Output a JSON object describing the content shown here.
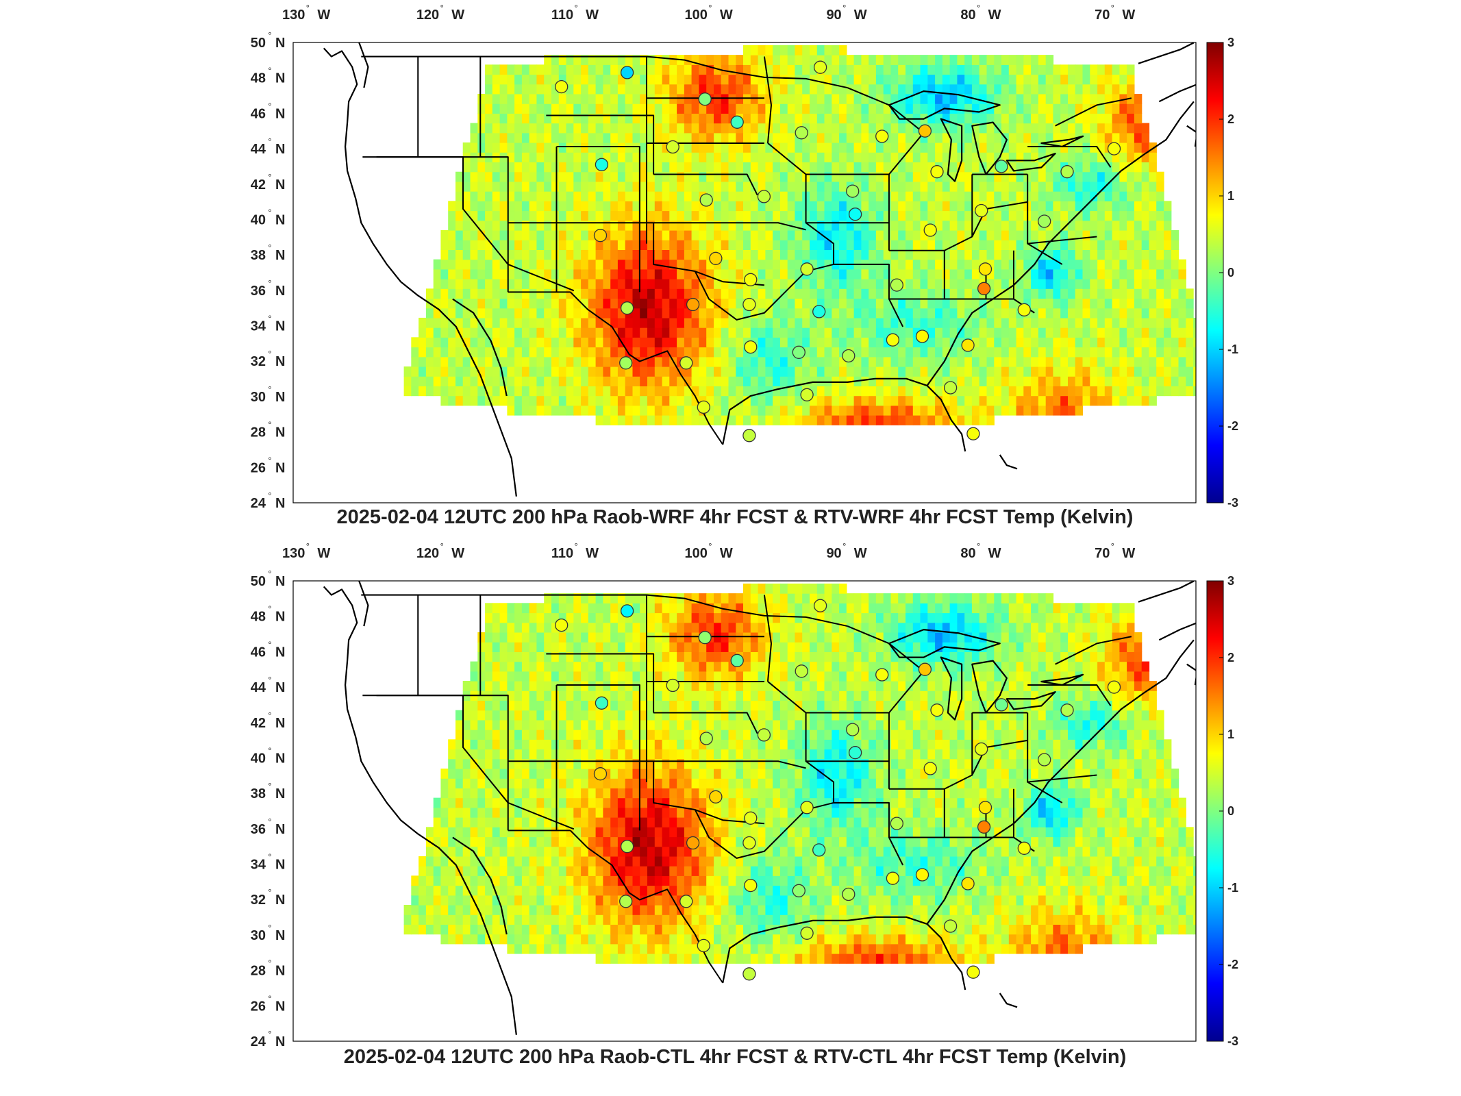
{
  "figure": {
    "colormap": "jet",
    "colors": {
      "jet": [
        "#00008f",
        "#0000ff",
        "#0080ff",
        "#00ffff",
        "#80ff80",
        "#ffff00",
        "#ff8000",
        "#ff0000",
        "#800000"
      ],
      "background": "#ffffff",
      "border": "#000000",
      "station_outline": "#333333"
    },
    "value_range": [
      -3,
      3
    ],
    "longitude_ticks": [
      {
        "value": -130,
        "label": "130",
        "hemi": "W"
      },
      {
        "value": -120,
        "label": "120",
        "hemi": "W"
      },
      {
        "value": -110,
        "label": "110",
        "hemi": "W"
      },
      {
        "value": -100,
        "label": "100",
        "hemi": "W"
      },
      {
        "value": -90,
        "label": "90",
        "hemi": "W"
      },
      {
        "value": -80,
        "label": "80",
        "hemi": "W"
      },
      {
        "value": -70,
        "label": "70",
        "hemi": "W"
      }
    ],
    "latitude_ticks": [
      {
        "value": 50,
        "label": "50",
        "hemi": "N"
      },
      {
        "value": 48,
        "label": "48",
        "hemi": "N"
      },
      {
        "value": 46,
        "label": "46",
        "hemi": "N"
      },
      {
        "value": 44,
        "label": "44",
        "hemi": "N"
      },
      {
        "value": 42,
        "label": "42",
        "hemi": "N"
      },
      {
        "value": 40,
        "label": "40",
        "hemi": "N"
      },
      {
        "value": 38,
        "label": "38",
        "hemi": "N"
      },
      {
        "value": 36,
        "label": "36",
        "hemi": "N"
      },
      {
        "value": 34,
        "label": "34",
        "hemi": "N"
      },
      {
        "value": 32,
        "label": "32",
        "hemi": "N"
      },
      {
        "value": 30,
        "label": "30",
        "hemi": "N"
      },
      {
        "value": 28,
        "label": "28",
        "hemi": "N"
      },
      {
        "value": 26,
        "label": "26",
        "hemi": "N"
      },
      {
        "value": 24,
        "label": "24",
        "hemi": "N"
      }
    ],
    "colorbar_ticks": [
      "3",
      "2",
      "1",
      "0",
      "-1",
      "-2",
      "-3"
    ]
  },
  "panels": [
    {
      "title": "2025-02-04 12UTC 200 hPa Raob-WRF 4hr FCST & RTV-WRF 4hr FCST Temp (Kelvin)",
      "stations": [
        {
          "lon": -106.6,
          "lat": 48.3,
          "v": -1.0
        },
        {
          "lon": -111.5,
          "lat": 47.5,
          "v": 0.7
        },
        {
          "lon": -100.8,
          "lat": 46.8,
          "v": 0.0
        },
        {
          "lon": -98.4,
          "lat": 45.5,
          "v": -0.4
        },
        {
          "lon": -103.2,
          "lat": 44.1,
          "v": 0.5
        },
        {
          "lon": -108.5,
          "lat": 43.1,
          "v": -0.6
        },
        {
          "lon": -93.6,
          "lat": 44.9,
          "v": 0.3
        },
        {
          "lon": -92.2,
          "lat": 48.6,
          "v": 0.6
        },
        {
          "lon": -100.7,
          "lat": 41.1,
          "v": 0.3
        },
        {
          "lon": -96.4,
          "lat": 41.3,
          "v": 0.4
        },
        {
          "lon": -108.6,
          "lat": 39.1,
          "v": 1.0
        },
        {
          "lon": -100.0,
          "lat": 37.8,
          "v": 1.0
        },
        {
          "lon": -97.4,
          "lat": 36.6,
          "v": 0.7
        },
        {
          "lon": -97.5,
          "lat": 35.2,
          "v": 0.6
        },
        {
          "lon": -101.7,
          "lat": 35.2,
          "v": 1.3
        },
        {
          "lon": -106.6,
          "lat": 35.0,
          "v": 0.3
        },
        {
          "lon": -106.7,
          "lat": 31.9,
          "v": 0.2
        },
        {
          "lon": -102.2,
          "lat": 31.9,
          "v": 0.5
        },
        {
          "lon": -97.4,
          "lat": 32.8,
          "v": 0.7
        },
        {
          "lon": -100.9,
          "lat": 29.4,
          "v": 0.6
        },
        {
          "lon": -97.5,
          "lat": 27.8,
          "v": 0.4
        },
        {
          "lon": -93.2,
          "lat": 37.2,
          "v": 0.5
        },
        {
          "lon": -92.3,
          "lat": 34.8,
          "v": -0.6
        },
        {
          "lon": -93.8,
          "lat": 32.5,
          "v": 0.0
        },
        {
          "lon": -93.2,
          "lat": 30.1,
          "v": 0.5
        },
        {
          "lon": -90.1,
          "lat": 32.3,
          "v": 0.3
        },
        {
          "lon": -86.8,
          "lat": 33.2,
          "v": 0.7
        },
        {
          "lon": -84.6,
          "lat": 33.4,
          "v": 0.8
        },
        {
          "lon": -81.2,
          "lat": 32.9,
          "v": 0.9
        },
        {
          "lon": -82.5,
          "lat": 30.5,
          "v": 0.4
        },
        {
          "lon": -80.8,
          "lat": 27.9,
          "v": 0.7
        },
        {
          "lon": -86.5,
          "lat": 36.3,
          "v": 0.3
        },
        {
          "lon": -89.6,
          "lat": 40.3,
          "v": -0.7
        },
        {
          "lon": -84.0,
          "lat": 39.4,
          "v": 0.7
        },
        {
          "lon": -80.2,
          "lat": 40.5,
          "v": 0.6
        },
        {
          "lon": -79.9,
          "lat": 37.2,
          "v": 0.9
        },
        {
          "lon": -80.0,
          "lat": 36.1,
          "v": 1.5
        },
        {
          "lon": -77.0,
          "lat": 34.9,
          "v": 0.7
        },
        {
          "lon": -89.8,
          "lat": 41.6,
          "v": 0.2
        },
        {
          "lon": -87.6,
          "lat": 44.7,
          "v": 0.7
        },
        {
          "lon": -84.4,
          "lat": 45.0,
          "v": 1.1
        },
        {
          "lon": -83.5,
          "lat": 42.7,
          "v": 0.7
        },
        {
          "lon": -78.7,
          "lat": 43.0,
          "v": -0.2
        },
        {
          "lon": -73.8,
          "lat": 42.7,
          "v": 0.3
        },
        {
          "lon": -75.5,
          "lat": 39.9,
          "v": 0.2
        },
        {
          "lon": -70.3,
          "lat": 44.0,
          "v": 0.7
        }
      ]
    },
    {
      "title": "2025-02-04 12UTC 200 hPa Raob-CTL 4hr FCST & RTV-CTL 4hr FCST Temp (Kelvin)",
      "stations": [
        {
          "lon": -106.6,
          "lat": 48.3,
          "v": -0.8
        },
        {
          "lon": -111.5,
          "lat": 47.5,
          "v": 0.7
        },
        {
          "lon": -100.8,
          "lat": 46.8,
          "v": 0.1
        },
        {
          "lon": -98.4,
          "lat": 45.5,
          "v": -0.2
        },
        {
          "lon": -103.2,
          "lat": 44.1,
          "v": 0.5
        },
        {
          "lon": -108.5,
          "lat": 43.1,
          "v": -0.4
        },
        {
          "lon": -93.6,
          "lat": 44.9,
          "v": 0.4
        },
        {
          "lon": -92.2,
          "lat": 48.6,
          "v": 0.6
        },
        {
          "lon": -100.7,
          "lat": 41.1,
          "v": 0.3
        },
        {
          "lon": -96.4,
          "lat": 41.3,
          "v": 0.4
        },
        {
          "lon": -108.6,
          "lat": 39.1,
          "v": 1.0
        },
        {
          "lon": -100.0,
          "lat": 37.8,
          "v": 1.0
        },
        {
          "lon": -97.4,
          "lat": 36.6,
          "v": 0.6
        },
        {
          "lon": -97.5,
          "lat": 35.2,
          "v": 0.6
        },
        {
          "lon": -101.7,
          "lat": 35.2,
          "v": 1.3
        },
        {
          "lon": -106.6,
          "lat": 35.0,
          "v": 0.3
        },
        {
          "lon": -106.7,
          "lat": 31.9,
          "v": 0.3
        },
        {
          "lon": -102.2,
          "lat": 31.9,
          "v": 0.5
        },
        {
          "lon": -97.4,
          "lat": 32.8,
          "v": 0.7
        },
        {
          "lon": -100.9,
          "lat": 29.4,
          "v": 0.6
        },
        {
          "lon": -97.5,
          "lat": 27.8,
          "v": 0.4
        },
        {
          "lon": -93.2,
          "lat": 37.2,
          "v": 0.6
        },
        {
          "lon": -92.3,
          "lat": 34.8,
          "v": -0.4
        },
        {
          "lon": -93.8,
          "lat": 32.5,
          "v": 0.1
        },
        {
          "lon": -93.2,
          "lat": 30.1,
          "v": 0.5
        },
        {
          "lon": -90.1,
          "lat": 32.3,
          "v": 0.3
        },
        {
          "lon": -86.8,
          "lat": 33.2,
          "v": 0.7
        },
        {
          "lon": -84.6,
          "lat": 33.4,
          "v": 0.8
        },
        {
          "lon": -81.2,
          "lat": 32.9,
          "v": 0.9
        },
        {
          "lon": -82.5,
          "lat": 30.5,
          "v": 0.4
        },
        {
          "lon": -80.8,
          "lat": 27.9,
          "v": 0.7
        },
        {
          "lon": -86.5,
          "lat": 36.3,
          "v": 0.3
        },
        {
          "lon": -89.6,
          "lat": 40.3,
          "v": -0.5
        },
        {
          "lon": -84.0,
          "lat": 39.4,
          "v": 0.7
        },
        {
          "lon": -80.2,
          "lat": 40.5,
          "v": 0.6
        },
        {
          "lon": -79.9,
          "lat": 37.2,
          "v": 0.9
        },
        {
          "lon": -80.0,
          "lat": 36.1,
          "v": 1.5
        },
        {
          "lon": -77.0,
          "lat": 34.9,
          "v": 0.7
        },
        {
          "lon": -89.8,
          "lat": 41.6,
          "v": 0.3
        },
        {
          "lon": -87.6,
          "lat": 44.7,
          "v": 0.7
        },
        {
          "lon": -84.4,
          "lat": 45.0,
          "v": 1.1
        },
        {
          "lon": -83.5,
          "lat": 42.7,
          "v": 0.7
        },
        {
          "lon": -78.7,
          "lat": 43.0,
          "v": -0.1
        },
        {
          "lon": -73.8,
          "lat": 42.7,
          "v": 0.3
        },
        {
          "lon": -75.5,
          "lat": 39.9,
          "v": 0.3
        },
        {
          "lon": -70.3,
          "lat": 44.0,
          "v": 0.7
        }
      ]
    }
  ]
}
